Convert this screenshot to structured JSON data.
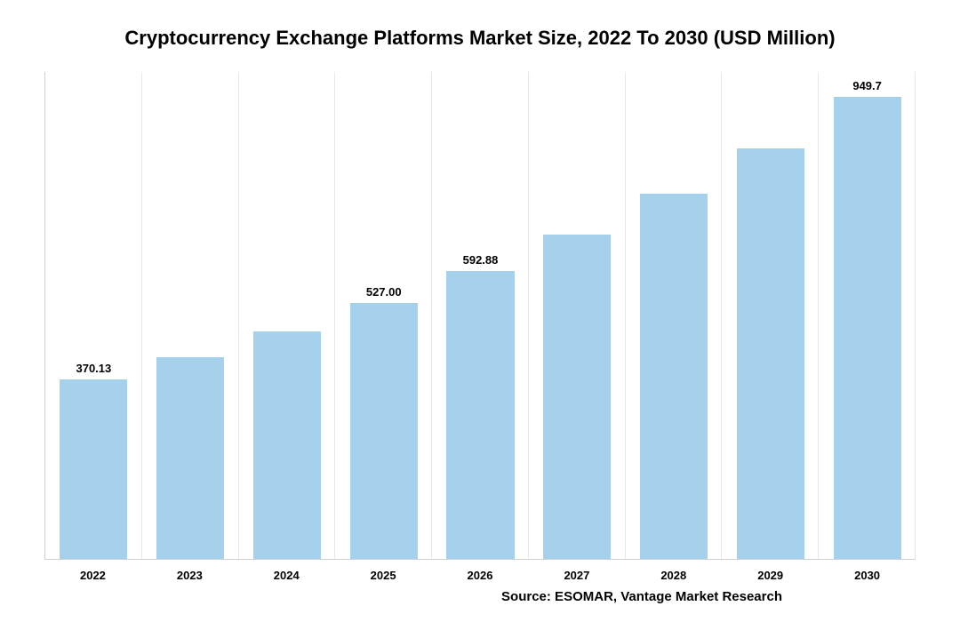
{
  "chart": {
    "type": "bar",
    "title": "Cryptocurrency Exchange Platforms Market Size, 2022 To 2030 (USD Million)",
    "title_fontsize": 22,
    "title_color": "#000000",
    "categories": [
      "2022",
      "2023",
      "2024",
      "2025",
      "2026",
      "2027",
      "2028",
      "2029",
      "2030"
    ],
    "values": [
      370.13,
      416,
      468,
      527.0,
      592.88,
      667,
      750,
      844,
      949.7
    ],
    "value_labels": [
      "370.13",
      "",
      "",
      "527.00",
      "592.88",
      "",
      "",
      "",
      "949.7"
    ],
    "ymax": 1000,
    "ymin": 0,
    "bar_color": "#a6d1ed",
    "bar_border_color": "#a6d1ed",
    "bar_width_pct": 70,
    "background_color": "#ffffff",
    "grid_color": "#e8e8e8",
    "axis_color": "#d0d0d0",
    "xtick_fontsize": 13,
    "xtick_fontweight": "bold",
    "xtick_color": "#000000",
    "value_label_fontsize": 13,
    "value_label_fontweight": "bold",
    "value_label_color": "#000000",
    "source_text": "Source: ESOMAR, Vantage Market Research",
    "source_fontsize": 15,
    "source_color": "#000000"
  }
}
